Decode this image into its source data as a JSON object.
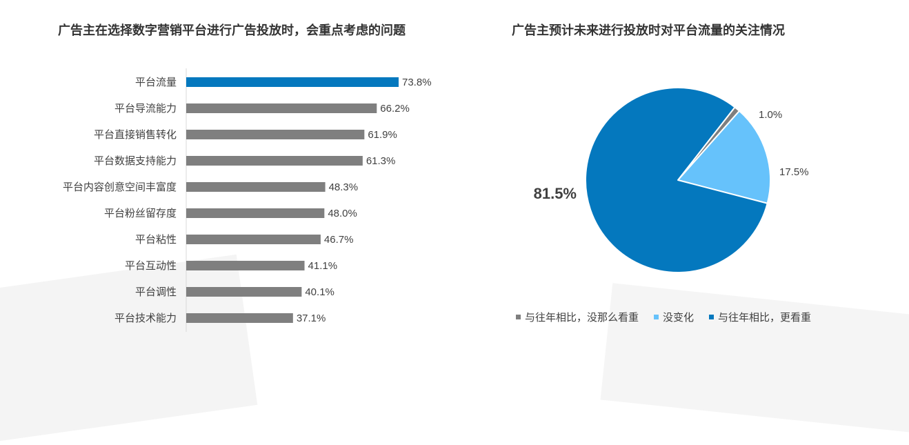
{
  "chart_data": [
    {
      "type": "bar",
      "orientation": "horizontal",
      "title": "广告主在选择数字营销平台进行广告投放时，会重点考虑的问题",
      "categories": [
        "平台流量",
        "平台导流能力",
        "平台直接销售转化",
        "平台数据支持能力",
        "平台内容创意空间丰富度",
        "平台粉丝留存度",
        "平台粘性",
        "平台互动性",
        "平台调性",
        "平台技术能力"
      ],
      "values": [
        73.8,
        66.2,
        61.9,
        61.3,
        48.3,
        48.0,
        46.7,
        41.1,
        40.1,
        37.1
      ],
      "value_labels": [
        "73.8%",
        "66.2%",
        "61.9%",
        "61.3%",
        "48.3%",
        "48.0%",
        "46.7%",
        "41.1%",
        "40.1%",
        "37.1%"
      ],
      "highlight_index": 0,
      "colors": {
        "highlight": "#0478be",
        "default": "#7f7f7f",
        "axis": "#d9d9d9"
      },
      "xlim": [
        0,
        100
      ],
      "grid": false,
      "xlabel": "",
      "ylabel": ""
    },
    {
      "type": "pie",
      "title": "广告主预计未来进行投放时对平台流量的关注情况",
      "slices": [
        {
          "name": "与往年相比，没那么看重",
          "value": 1.0,
          "label": "1.0%",
          "color": "#7f7f7f"
        },
        {
          "name": "没变化",
          "value": 17.5,
          "label": "17.5%",
          "color": "#66c2fb"
        },
        {
          "name": "与往年相比，更看重",
          "value": 81.5,
          "label": "81.5%",
          "color": "#0478be"
        }
      ],
      "legend_position": "bottom"
    }
  ]
}
